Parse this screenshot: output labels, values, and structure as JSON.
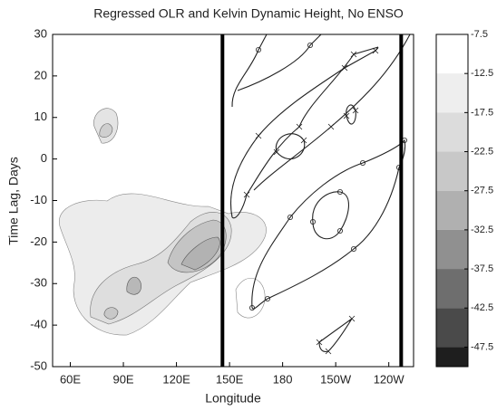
{
  "chart_data": {
    "type": "contour",
    "title": "Regressed OLR and Kelvin Dynamic Height, No ENSO",
    "xlabel": "Longitude",
    "ylabel": "Time Lag, Days",
    "xlim": [
      50,
      254
    ],
    "ylim": [
      -50,
      30
    ],
    "xticks": [
      {
        "value": 60,
        "label": "60E"
      },
      {
        "value": 90,
        "label": "90E"
      },
      {
        "value": 120,
        "label": "120E"
      },
      {
        "value": 150,
        "label": "150E"
      },
      180,
      {
        "value": 210,
        "label": "150W"
      },
      {
        "value": 240,
        "label": "120W"
      }
    ],
    "yticks": [
      -50,
      -40,
      -30,
      -20,
      -10,
      0,
      10,
      20,
      30
    ],
    "vlines": [
      146,
      247
    ],
    "colorbar": {
      "lim": [
        -50,
        -7.5
      ],
      "ticks": [
        -7.5,
        -12.5,
        -17.5,
        -22.5,
        -27.5,
        -32.5,
        -37.5,
        -42.5,
        -47.5
      ],
      "colors": [
        "#ffffff",
        "#eeeeee",
        "#dcdcdc",
        "#c8c8c8",
        "#b0b0b0",
        "#909090",
        "#6e6e6e",
        "#4a4a4a",
        "#1e1e1e"
      ]
    }
  }
}
